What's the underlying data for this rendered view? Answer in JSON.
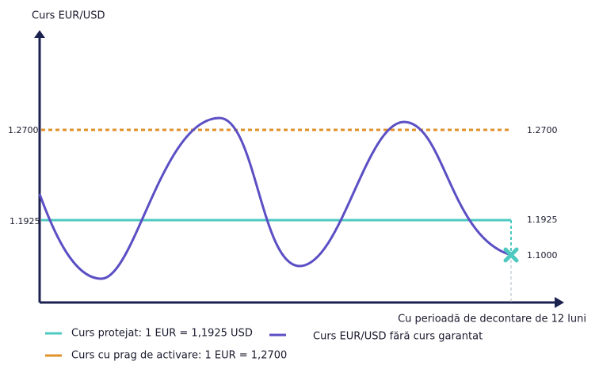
{
  "y_axis_title": "Curs EUR/USD",
  "x_axis_title": "Cu perioadă de decontare de 12 luni",
  "levels": [
    {
      "left_label": "1.2700",
      "right_label": "1.2700"
    },
    {
      "left_label": "1.1925",
      "right_label": "1.1925"
    }
  ],
  "end_label": "1.1000",
  "legend": [
    {
      "label": "Curs protejat: 1 EUR = 1,1925 USD"
    },
    {
      "label": "Curs cu prag de activare: 1 EUR = 1,2700"
    },
    {
      "label": "Curs EUR/USD fără curs garantat"
    }
  ]
}
